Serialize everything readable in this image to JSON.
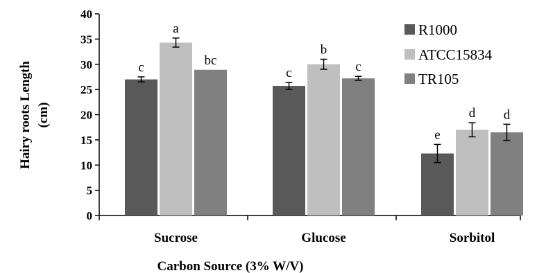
{
  "chart_data": {
    "type": "bar",
    "categories": [
      "Sucrose",
      "Glucose",
      "Sorbitol"
    ],
    "xlabel": "Carbon Source (3% W/V)",
    "ylabel_lines": [
      "Hairy roots Length",
      "(cm)"
    ],
    "ylim": [
      0,
      40
    ],
    "yticks": [
      0,
      5,
      10,
      15,
      20,
      25,
      30,
      35,
      40
    ],
    "grid": false,
    "legend_position": "top-right",
    "series": [
      {
        "name": "R1000",
        "color": "#595959",
        "values": [
          27.0,
          25.7,
          12.3
        ],
        "errors": [
          0.5,
          0.7,
          1.8
        ],
        "significance": [
          "c",
          "c",
          "e"
        ]
      },
      {
        "name": "ATCC15834",
        "color": "#bfbfbf",
        "values": [
          34.3,
          30.0,
          17.0
        ],
        "errors": [
          0.9,
          1.0,
          1.4
        ],
        "significance": [
          "a",
          "b",
          "d"
        ]
      },
      {
        "name": "TR105",
        "color": "#808080",
        "values": [
          28.9,
          27.2,
          16.5
        ],
        "errors": [
          0,
          0.4,
          1.6
        ],
        "significance": [
          "bc",
          "c",
          "d"
        ]
      }
    ]
  }
}
